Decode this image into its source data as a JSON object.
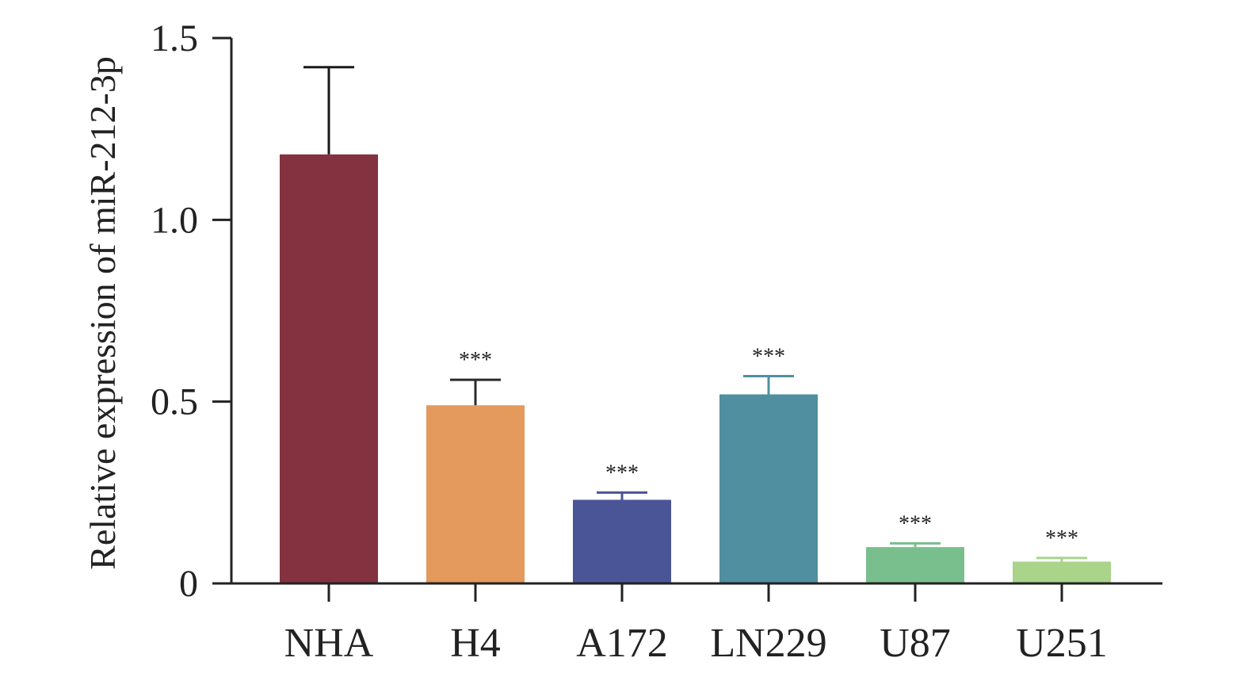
{
  "chart_data": {
    "type": "bar",
    "title": "",
    "xlabel": "",
    "ylabel": "Relative expression of miR-212-3p",
    "ylim": [
      0,
      1.5
    ],
    "yticks": [
      0,
      0.5,
      1.0,
      1.5
    ],
    "ytick_labels": [
      "0",
      "0.5",
      "1.0",
      "1.5"
    ],
    "grid": false,
    "categories": [
      "NHA",
      "H4",
      "A172",
      "LN229",
      "U87",
      "U251"
    ],
    "values": [
      1.18,
      0.49,
      0.23,
      0.52,
      0.1,
      0.06
    ],
    "error_upper": [
      1.42,
      0.56,
      0.25,
      0.57,
      0.11,
      0.07
    ],
    "annotations": [
      "",
      "***",
      "***",
      "***",
      "***",
      "***"
    ],
    "colors": [
      "#843240",
      "#E39A5C",
      "#4A5597",
      "#4F8FA0",
      "#79BF8E",
      "#A9D48A"
    ],
    "error_colors": [
      "#1a1a1a",
      "#2a2a2a",
      "#4A5597",
      "#4F8FA0",
      "#79BF8E",
      "#A9D48A"
    ]
  }
}
